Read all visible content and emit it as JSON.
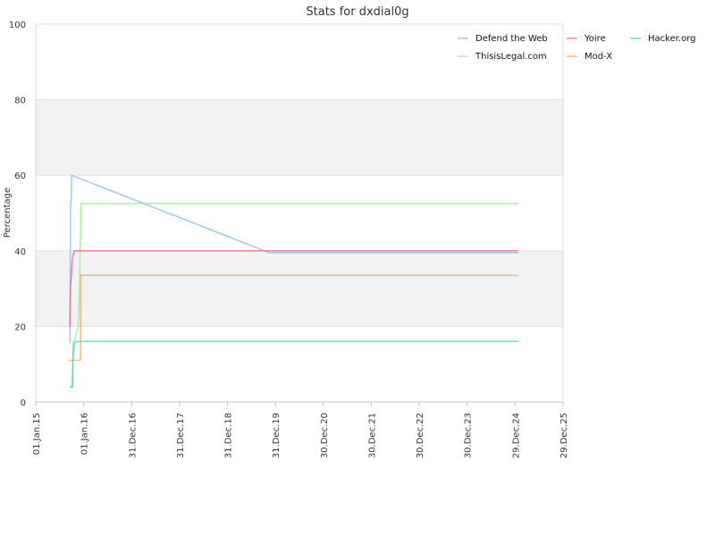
{
  "chart_data": {
    "type": "line",
    "title": "Stats for dxdial0g",
    "ylabel": "Percentage",
    "xlabel": "",
    "ylim": [
      0,
      100
    ],
    "yticks": [
      "0",
      "20",
      "40",
      "60",
      "80",
      "100"
    ],
    "xlim": [
      "2015-01-01",
      "2025-12-29"
    ],
    "xticks": [
      {
        "date": "2015-01-01",
        "label": "01.Jan.15"
      },
      {
        "date": "2016-01-01",
        "label": "01.Jan.16"
      },
      {
        "date": "2016-12-31",
        "label": "31.Dec.16"
      },
      {
        "date": "2017-12-31",
        "label": "31.Dec.17"
      },
      {
        "date": "2018-12-31",
        "label": "31.Dec.18"
      },
      {
        "date": "2019-12-31",
        "label": "31.Dec.19"
      },
      {
        "date": "2020-12-30",
        "label": "30.Dec.20"
      },
      {
        "date": "2021-12-30",
        "label": "30.Dec.21"
      },
      {
        "date": "2022-12-30",
        "label": "30.Dec.22"
      },
      {
        "date": "2023-12-30",
        "label": "30.Dec.23"
      },
      {
        "date": "2024-12-29",
        "label": "29.Dec.24"
      },
      {
        "date": "2025-12-29",
        "label": "29.Dec.25"
      }
    ],
    "grid": true,
    "legend_position": "top-right",
    "series": [
      {
        "name": "Defend the Web",
        "color": "#7cb5ec",
        "points": [
          [
            "2015-09-18",
            15.5
          ],
          [
            "2015-09-20",
            20
          ],
          [
            "2015-09-22",
            51
          ],
          [
            "2015-09-26",
            53
          ],
          [
            "2015-09-29",
            53.5
          ],
          [
            "2015-10-01",
            60
          ],
          [
            "2019-11-15",
            39.5
          ],
          [
            "2025-01-20",
            39.5
          ]
        ]
      },
      {
        "name": "ThisisLegal.com",
        "color": "#90ed7d",
        "points": [
          [
            "2015-09-18",
            4
          ],
          [
            "2015-10-10",
            4
          ],
          [
            "2015-10-10",
            8
          ],
          [
            "2015-10-12",
            15
          ],
          [
            "2015-11-20",
            20
          ],
          [
            "2015-11-28",
            27
          ],
          [
            "2015-12-08",
            44
          ],
          [
            "2015-12-10",
            52.5
          ],
          [
            "2025-01-20",
            52.5
          ]
        ]
      },
      {
        "name": "Yoire",
        "color": "#f15c80",
        "points": [
          [
            "2015-09-18",
            20
          ],
          [
            "2015-09-22",
            30
          ],
          [
            "2015-10-08",
            38
          ],
          [
            "2015-10-20",
            40
          ],
          [
            "2025-01-20",
            40
          ]
        ]
      },
      {
        "name": "Mod-X",
        "color": "#f7a35c",
        "points": [
          [
            "2015-09-10",
            11
          ],
          [
            "2015-12-08",
            11
          ],
          [
            "2015-12-10",
            33.5
          ],
          [
            "2025-01-20",
            33.5
          ]
        ]
      },
      {
        "name": "Hacker.org",
        "color": "#2bd9b0",
        "points": [
          [
            "2015-09-18",
            4
          ],
          [
            "2015-10-05",
            4
          ],
          [
            "2015-10-12",
            12
          ],
          [
            "2015-10-20",
            15.5
          ],
          [
            "2015-11-10",
            16
          ],
          [
            "2025-01-20",
            16
          ]
        ]
      }
    ]
  }
}
